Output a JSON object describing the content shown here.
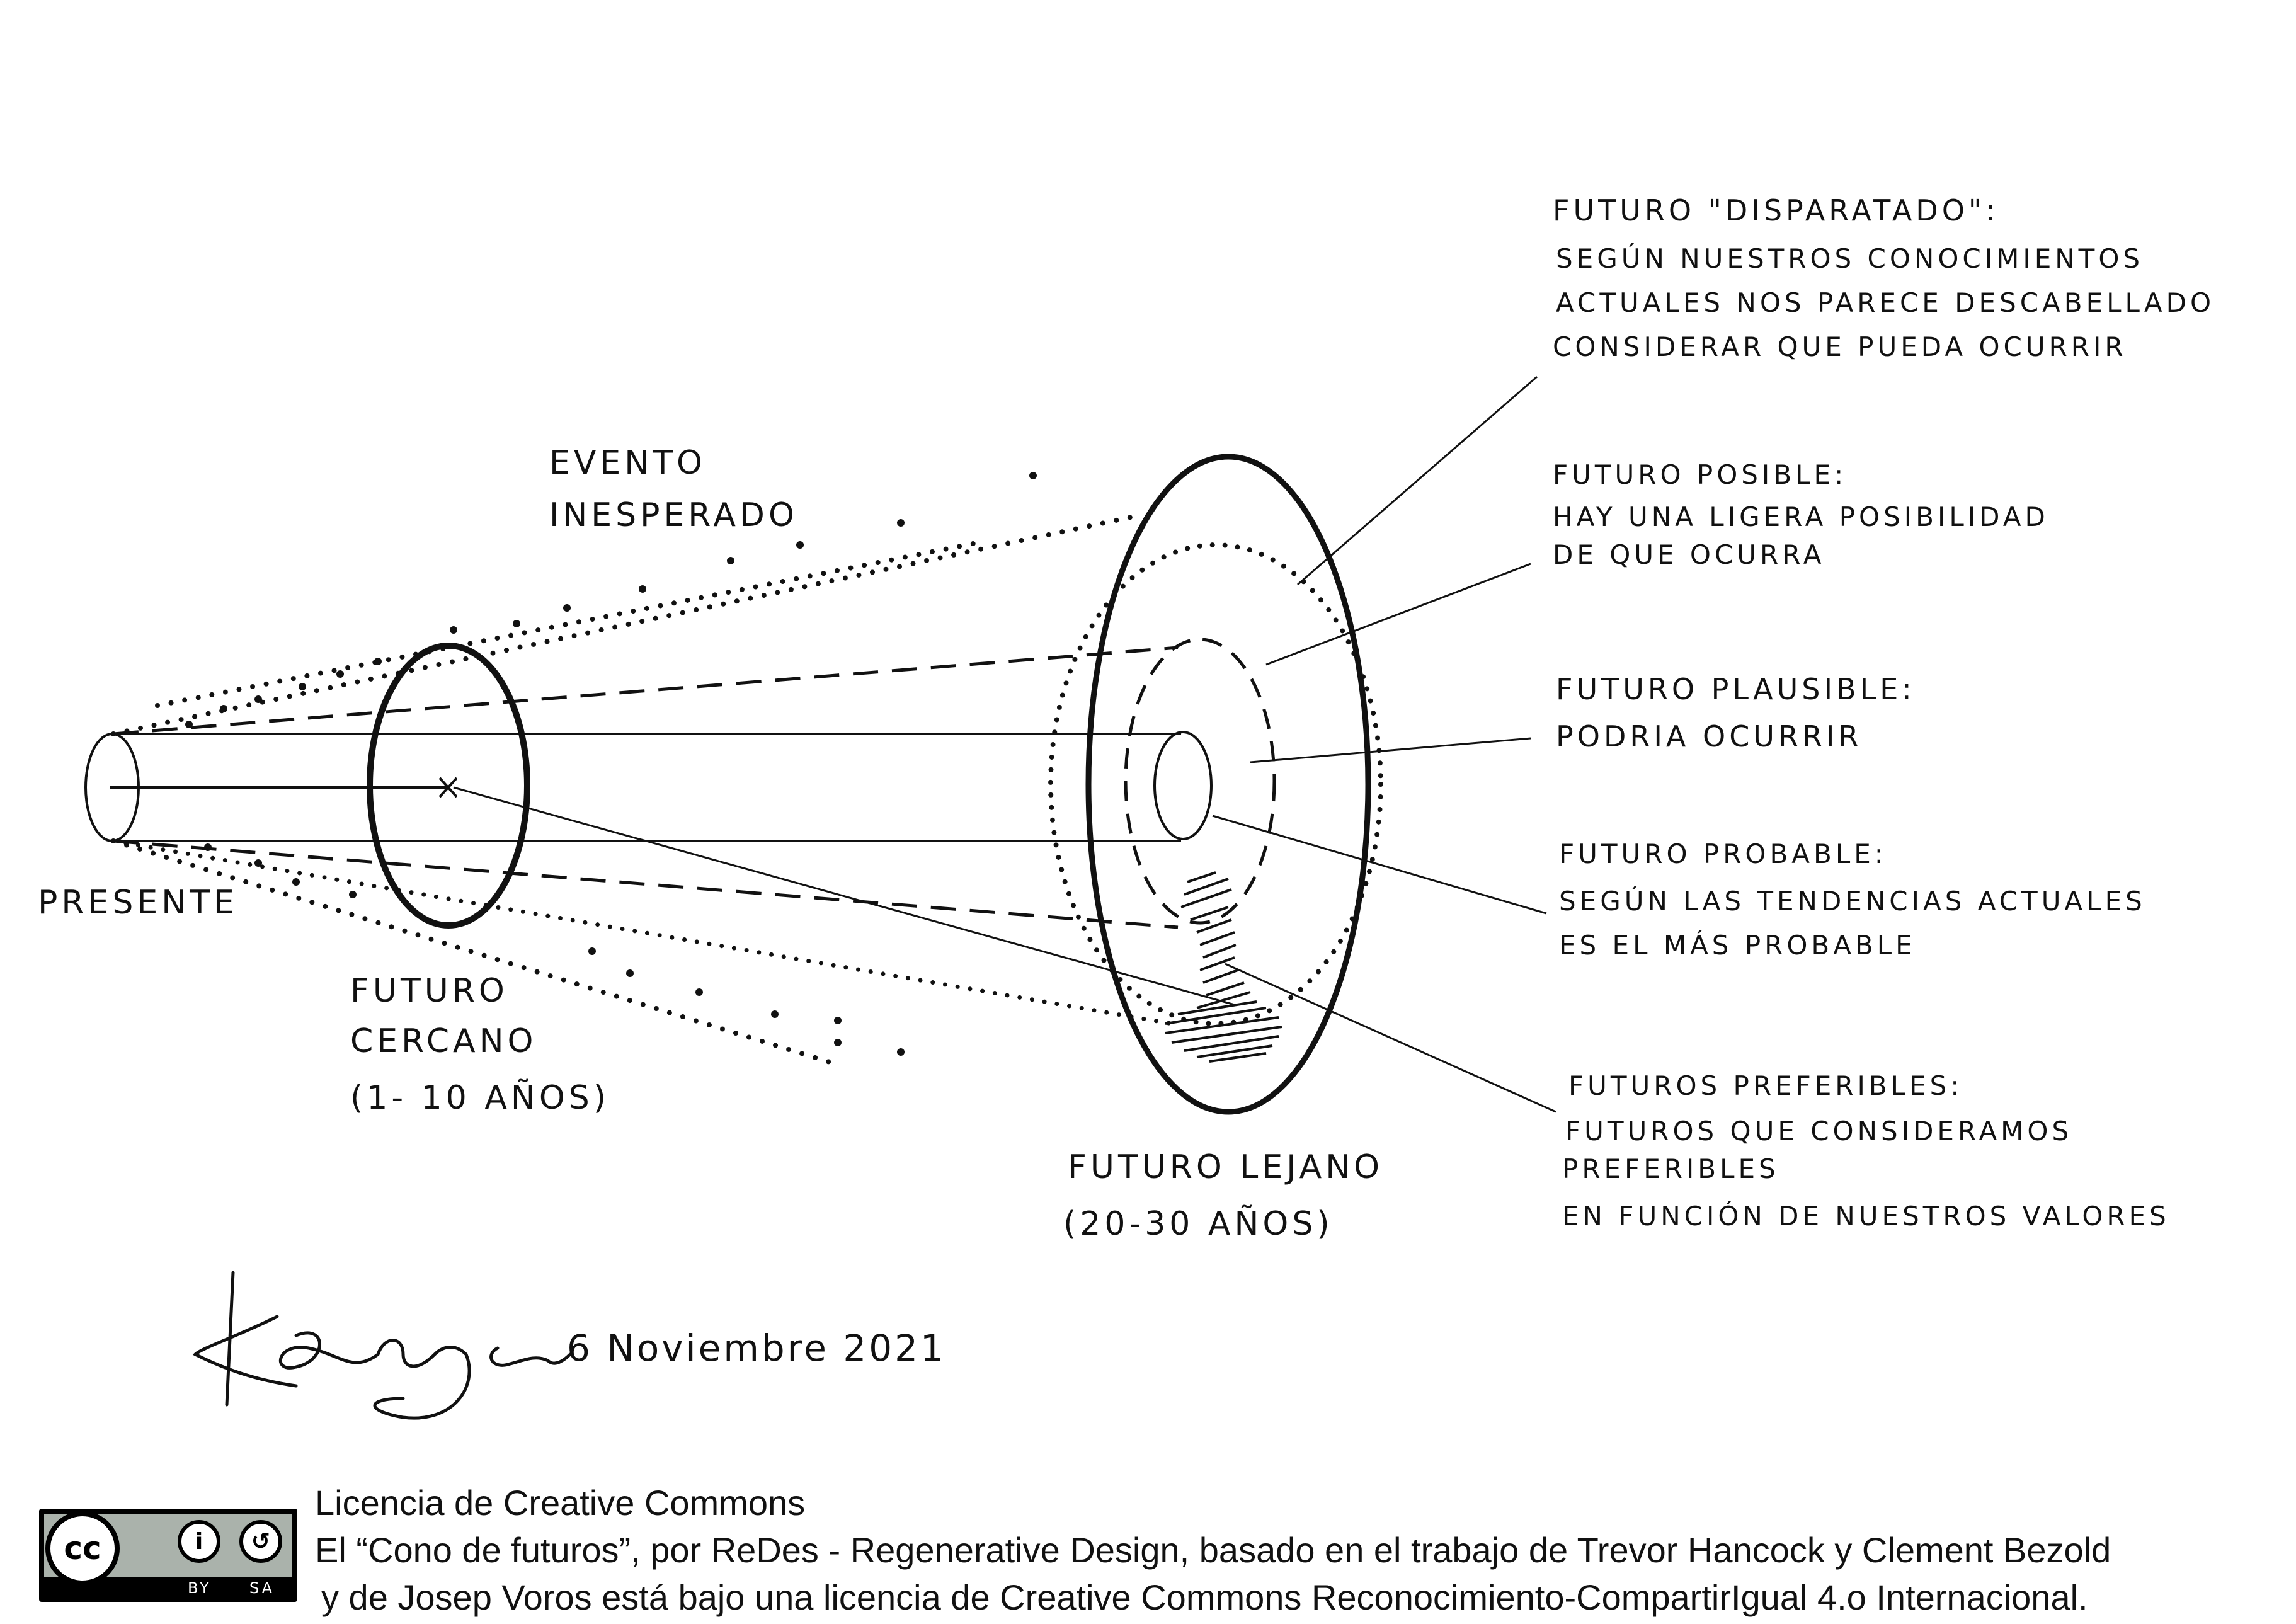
{
  "labels": {
    "presente": "PRESENTE",
    "evento_l1": "EVENTO",
    "evento_l2": "INESPERADO",
    "cercano_l1": "FUTURO",
    "cercano_l2": "CERCANO",
    "cercano_l3": "(1- 10 AÑOS)",
    "lejano_l1": "FUTURO LEJANO",
    "lejano_l2": "(20-30 AÑOS)",
    "disparatado_title": "FUTURO \"DISPARATADO\":",
    "disparatado_l1": "SEGÚN NUESTROS CONOCIMIENTOS",
    "disparatado_l2": "ACTUALES NOS PARECE DESCABELLADO",
    "disparatado_l3": "CONSIDERAR QUE PUEDA OCURRIR",
    "posible_title": "FUTURO POSIBLE:",
    "posible_l1": "HAY UNA LIGERA POSIBILIDAD",
    "posible_l2": "DE QUE OCURRA",
    "plausible_title": "FUTURO PLAUSIBLE:",
    "plausible_l1": "PODRIA OCURRIR",
    "probable_title": "FUTURO PROBABLE:",
    "probable_l1": "SEGÚN LAS TENDENCIAS ACTUALES",
    "probable_l2": "ES EL MÁS PROBABLE",
    "preferibles_title": "FUTUROS PREFERIBLES:",
    "preferibles_l1": "FUTUROS QUE CONSIDERAMOS",
    "preferibles_l2": "PREFERIBLES",
    "preferibles_l3": "EN FUNCIÓN DE NUESTROS VALORES"
  },
  "signature": {
    "name": "Ksenija",
    "date": "6 Noviembre 2021"
  },
  "license": {
    "title": "Licencia de Creative Commons",
    "line1": "El “Cono de futuros”, por ReDes - Regenerative Design, basado en el trabajo de Trevor Hancock y Clement Bezold",
    "line2": "y de Josep Voros está bajo una licencia de Creative Commons Reconocimiento-CompartirIgual 4.o Internacional.",
    "badge_cc": "cc",
    "badge_by": "BY",
    "badge_sa": "SA"
  }
}
